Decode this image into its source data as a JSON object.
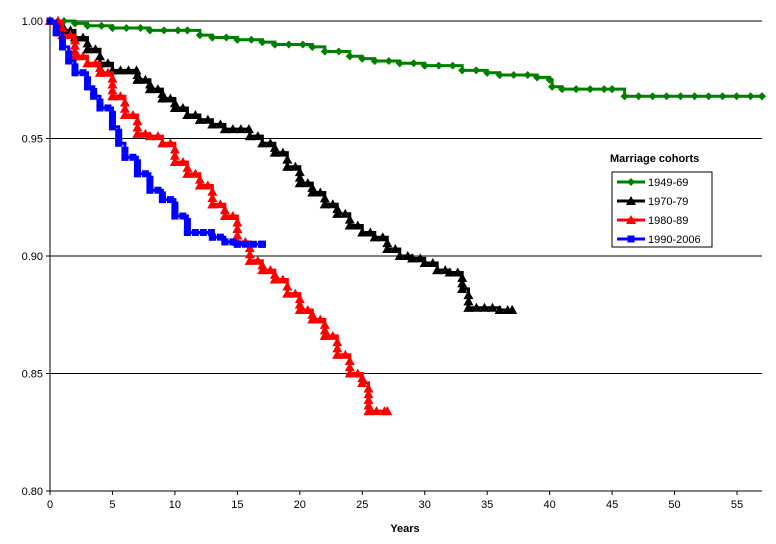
{
  "chart_data": {
    "type": "line",
    "title": "",
    "xlabel": "Years",
    "ylabel": "",
    "xlim": [
      0,
      57
    ],
    "ylim": [
      0.8,
      1.0
    ],
    "x_ticks": [
      0,
      5,
      10,
      15,
      20,
      25,
      30,
      35,
      40,
      45,
      50,
      55
    ],
    "x_tick_labels": [
      "0",
      "5",
      "10",
      "15",
      "20",
      "25",
      "30",
      "35",
      "40",
      "45",
      "50",
      "55"
    ],
    "y_ticks": [
      0.8,
      0.85,
      0.9,
      0.95,
      1.0
    ],
    "y_tick_labels": [
      "0.80",
      "0.85",
      "0.90",
      "0.95",
      "1.00"
    ],
    "grid": "horizontal",
    "legend": {
      "title": "Marriage cohorts",
      "placement": "right"
    },
    "series": [
      {
        "name": "1949-69",
        "color": "#008000",
        "marker": "diamond",
        "points": [
          [
            0,
            1.0
          ],
          [
            2,
            0.999
          ],
          [
            3,
            0.998
          ],
          [
            5,
            0.997
          ],
          [
            8,
            0.996
          ],
          [
            11,
            0.996
          ],
          [
            12,
            0.994
          ],
          [
            13,
            0.993
          ],
          [
            15,
            0.992
          ],
          [
            17,
            0.991
          ],
          [
            18,
            0.99
          ],
          [
            21,
            0.989
          ],
          [
            22,
            0.987
          ],
          [
            24,
            0.985
          ],
          [
            25,
            0.984
          ],
          [
            26,
            0.983
          ],
          [
            28,
            0.982
          ],
          [
            30,
            0.981
          ],
          [
            33,
            0.979
          ],
          [
            35,
            0.978
          ],
          [
            36,
            0.977
          ],
          [
            39,
            0.976
          ],
          [
            40,
            0.975
          ],
          [
            40.2,
            0.972
          ],
          [
            41,
            0.971
          ],
          [
            45,
            0.971
          ],
          [
            46,
            0.968
          ],
          [
            57,
            0.968
          ]
        ]
      },
      {
        "name": "1970-79",
        "color": "#000000",
        "marker": "triangle",
        "points": [
          [
            0,
            1.0
          ],
          [
            1,
            0.996
          ],
          [
            2,
            0.993
          ],
          [
            3,
            0.988
          ],
          [
            4,
            0.982
          ],
          [
            5,
            0.979
          ],
          [
            7,
            0.975
          ],
          [
            8,
            0.971
          ],
          [
            9,
            0.967
          ],
          [
            10,
            0.963
          ],
          [
            11,
            0.96
          ],
          [
            12,
            0.958
          ],
          [
            13,
            0.956
          ],
          [
            14,
            0.954
          ],
          [
            16,
            0.951
          ],
          [
            17,
            0.948
          ],
          [
            18,
            0.944
          ],
          [
            19,
            0.938
          ],
          [
            20,
            0.931
          ],
          [
            21,
            0.927
          ],
          [
            22,
            0.922
          ],
          [
            23,
            0.918
          ],
          [
            24,
            0.913
          ],
          [
            25,
            0.91
          ],
          [
            26,
            0.908
          ],
          [
            27,
            0.903
          ],
          [
            28,
            0.9
          ],
          [
            29,
            0.899
          ],
          [
            30,
            0.897
          ],
          [
            31,
            0.894
          ],
          [
            32,
            0.893
          ],
          [
            33,
            0.886
          ],
          [
            33.5,
            0.878
          ],
          [
            36,
            0.877
          ],
          [
            37,
            0.877
          ]
        ]
      },
      {
        "name": "1980-89",
        "color": "#ff0000",
        "marker": "triangle",
        "points": [
          [
            0,
            1.0
          ],
          [
            1,
            0.994
          ],
          [
            2,
            0.985
          ],
          [
            3,
            0.982
          ],
          [
            4,
            0.978
          ],
          [
            5,
            0.968
          ],
          [
            6,
            0.96
          ],
          [
            7,
            0.952
          ],
          [
            8,
            0.951
          ],
          [
            9,
            0.948
          ],
          [
            10,
            0.94
          ],
          [
            11,
            0.935
          ],
          [
            12,
            0.93
          ],
          [
            13,
            0.922
          ],
          [
            14,
            0.917
          ],
          [
            15,
            0.906
          ],
          [
            16,
            0.898
          ],
          [
            17,
            0.894
          ],
          [
            18,
            0.89
          ],
          [
            19,
            0.884
          ],
          [
            20,
            0.877
          ],
          [
            21,
            0.873
          ],
          [
            22,
            0.866
          ],
          [
            23,
            0.858
          ],
          [
            24,
            0.85
          ],
          [
            25,
            0.846
          ],
          [
            25.5,
            0.834
          ],
          [
            27,
            0.834
          ]
        ]
      },
      {
        "name": "1990-2006",
        "color": "#0000ff",
        "marker": "square",
        "points": [
          [
            0,
            1.0
          ],
          [
            0.5,
            0.995
          ],
          [
            1,
            0.989
          ],
          [
            1.5,
            0.983
          ],
          [
            2,
            0.978
          ],
          [
            3,
            0.972
          ],
          [
            3.5,
            0.968
          ],
          [
            4,
            0.963
          ],
          [
            5,
            0.955
          ],
          [
            5.5,
            0.948
          ],
          [
            6,
            0.942
          ],
          [
            7,
            0.935
          ],
          [
            8,
            0.928
          ],
          [
            9,
            0.924
          ],
          [
            10,
            0.917
          ],
          [
            11,
            0.91
          ],
          [
            13,
            0.908
          ],
          [
            14,
            0.906
          ],
          [
            15,
            0.905
          ],
          [
            17,
            0.905
          ]
        ]
      }
    ]
  }
}
